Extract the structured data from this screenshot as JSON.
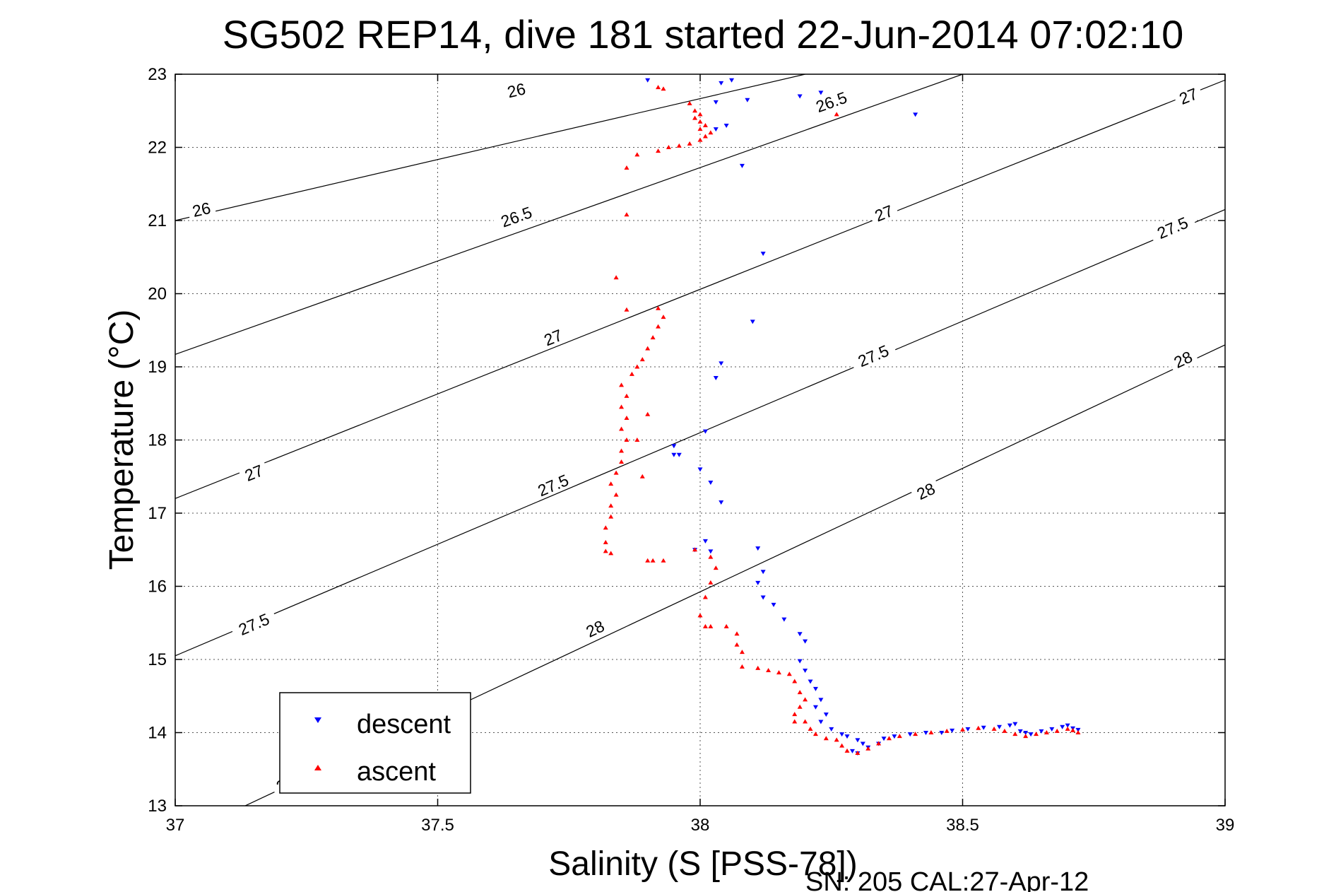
{
  "chart_data": {
    "type": "scatter",
    "title": "SG502 REP14, dive 181 started 22-Jun-2014 07:02:10",
    "xlabel": "Salinity (S [PSS-78])",
    "ylabel": "Temperature (°C)",
    "footer": "SN: 205  CAL:27-Apr-12",
    "xlim": [
      37,
      39
    ],
    "ylim": [
      13,
      23
    ],
    "xticks": [
      "37",
      "37.5",
      "38",
      "38.5",
      "39"
    ],
    "yticks": [
      "13",
      "14",
      "15",
      "16",
      "17",
      "18",
      "19",
      "20",
      "21",
      "22",
      "23"
    ],
    "grid": true,
    "legend_position": "bottom-left",
    "contours": [
      {
        "level": "26",
        "start": [
          37,
          21.0
        ],
        "end": [
          38.2,
          23.0
        ],
        "labels": [
          [
            37.05,
            21.15
          ],
          [
            37.65,
            22.78
          ]
        ]
      },
      {
        "level": "26.5",
        "start": [
          37,
          19.17
        ],
        "end": [
          38.5,
          23.0
        ],
        "labels": [
          [
            37.65,
            21.05
          ],
          [
            38.25,
            22.62
          ]
        ]
      },
      {
        "level": "27",
        "start": [
          37,
          17.2
        ],
        "end": [
          39,
          22.92
        ],
        "labels": [
          [
            37.15,
            17.55
          ],
          [
            37.72,
            19.4
          ],
          [
            38.35,
            21.1
          ],
          [
            38.93,
            22.7
          ]
        ]
      },
      {
        "level": "27.5",
        "start": [
          37,
          15.05
        ],
        "end": [
          39,
          21.15
        ],
        "labels": [
          [
            37.15,
            15.48
          ],
          [
            37.72,
            17.38
          ],
          [
            38.33,
            19.15
          ],
          [
            38.9,
            20.9
          ]
        ]
      },
      {
        "level": "28",
        "start": [
          37,
          12.55
        ],
        "end": [
          39,
          19.3
        ],
        "labels": [
          [
            37.21,
            13.3
          ],
          [
            37.8,
            15.42
          ],
          [
            38.43,
            17.3
          ],
          [
            38.92,
            19.1
          ]
        ]
      }
    ],
    "series": [
      {
        "name": "descent",
        "color": "#0000ff",
        "marker": "triangle-down",
        "points": [
          [
            37.9,
            22.92
          ],
          [
            38.04,
            22.88
          ],
          [
            38.06,
            22.92
          ],
          [
            38.03,
            22.62
          ],
          [
            38.09,
            22.65
          ],
          [
            38.19,
            22.7
          ],
          [
            38.23,
            22.75
          ],
          [
            38.41,
            22.45
          ],
          [
            38.03,
            22.25
          ],
          [
            38.05,
            22.3
          ],
          [
            38.08,
            21.75
          ],
          [
            38.12,
            20.55
          ],
          [
            38.1,
            19.62
          ],
          [
            38.04,
            19.05
          ],
          [
            38.03,
            18.85
          ],
          [
            38.01,
            18.12
          ],
          [
            37.95,
            17.92
          ],
          [
            37.95,
            17.8
          ],
          [
            37.96,
            17.8
          ],
          [
            38.0,
            17.6
          ],
          [
            38.02,
            17.42
          ],
          [
            38.04,
            17.15
          ],
          [
            38.01,
            16.62
          ],
          [
            37.99,
            16.5
          ],
          [
            38.02,
            16.48
          ],
          [
            38.11,
            16.52
          ],
          [
            38.12,
            16.2
          ],
          [
            38.11,
            16.05
          ],
          [
            38.12,
            15.85
          ],
          [
            38.14,
            15.75
          ],
          [
            38.16,
            15.55
          ],
          [
            38.19,
            15.35
          ],
          [
            38.2,
            15.25
          ],
          [
            38.19,
            14.98
          ],
          [
            38.2,
            14.85
          ],
          [
            38.21,
            14.7
          ],
          [
            38.22,
            14.6
          ],
          [
            38.23,
            14.45
          ],
          [
            38.22,
            14.35
          ],
          [
            38.24,
            14.25
          ],
          [
            38.23,
            14.15
          ],
          [
            38.25,
            14.05
          ],
          [
            38.27,
            13.98
          ],
          [
            38.28,
            13.95
          ],
          [
            38.3,
            13.9
          ],
          [
            38.31,
            13.85
          ],
          [
            38.29,
            13.75
          ],
          [
            38.3,
            13.72
          ],
          [
            38.32,
            13.8
          ],
          [
            38.34,
            13.85
          ],
          [
            38.35,
            13.92
          ],
          [
            38.37,
            13.95
          ],
          [
            38.4,
            13.98
          ],
          [
            38.43,
            14.0
          ],
          [
            38.46,
            14.0
          ],
          [
            38.48,
            14.03
          ],
          [
            38.51,
            14.05
          ],
          [
            38.54,
            14.07
          ],
          [
            38.57,
            14.08
          ],
          [
            38.59,
            14.1
          ],
          [
            38.6,
            14.12
          ],
          [
            38.61,
            14.02
          ],
          [
            38.62,
            14.0
          ],
          [
            38.63,
            13.98
          ],
          [
            38.65,
            14.02
          ],
          [
            38.67,
            14.05
          ],
          [
            38.69,
            14.08
          ],
          [
            38.7,
            14.1
          ],
          [
            38.71,
            14.06
          ],
          [
            38.72,
            14.04
          ]
        ]
      },
      {
        "name": "ascent",
        "color": "#ff0000",
        "marker": "triangle-up",
        "points": [
          [
            37.92,
            22.82
          ],
          [
            37.93,
            22.8
          ],
          [
            37.98,
            22.6
          ],
          [
            37.99,
            22.5
          ],
          [
            38.0,
            22.45
          ],
          [
            37.99,
            22.4
          ],
          [
            38.0,
            22.35
          ],
          [
            38.01,
            22.3
          ],
          [
            38.0,
            22.25
          ],
          [
            38.02,
            22.2
          ],
          [
            38.01,
            22.15
          ],
          [
            38.0,
            22.1
          ],
          [
            37.98,
            22.05
          ],
          [
            37.96,
            22.02
          ],
          [
            37.94,
            22.0
          ],
          [
            37.92,
            21.95
          ],
          [
            37.88,
            21.9
          ],
          [
            37.86,
            21.72
          ],
          [
            38.26,
            22.45
          ],
          [
            37.86,
            21.08
          ],
          [
            37.84,
            20.22
          ],
          [
            37.86,
            19.78
          ],
          [
            37.92,
            19.8
          ],
          [
            37.93,
            19.68
          ],
          [
            37.92,
            19.55
          ],
          [
            37.91,
            19.4
          ],
          [
            37.9,
            19.25
          ],
          [
            37.89,
            19.1
          ],
          [
            37.88,
            19.0
          ],
          [
            37.87,
            18.9
          ],
          [
            37.85,
            18.75
          ],
          [
            37.86,
            18.6
          ],
          [
            37.85,
            18.45
          ],
          [
            37.86,
            18.3
          ],
          [
            37.85,
            18.15
          ],
          [
            37.86,
            18.0
          ],
          [
            37.85,
            17.85
          ],
          [
            37.85,
            17.7
          ],
          [
            37.84,
            17.55
          ],
          [
            37.83,
            17.4
          ],
          [
            37.84,
            17.25
          ],
          [
            37.83,
            17.1
          ],
          [
            37.83,
            16.95
          ],
          [
            37.82,
            16.8
          ],
          [
            37.82,
            16.6
          ],
          [
            37.82,
            16.48
          ],
          [
            37.83,
            16.45
          ],
          [
            37.9,
            18.35
          ],
          [
            37.88,
            18.0
          ],
          [
            37.89,
            17.5
          ],
          [
            37.9,
            16.35
          ],
          [
            37.91,
            16.35
          ],
          [
            37.93,
            16.35
          ],
          [
            37.99,
            16.5
          ],
          [
            38.02,
            16.4
          ],
          [
            38.03,
            16.25
          ],
          [
            38.02,
            16.05
          ],
          [
            38.01,
            15.85
          ],
          [
            38.0,
            15.6
          ],
          [
            38.01,
            15.45
          ],
          [
            38.02,
            15.45
          ],
          [
            38.05,
            15.45
          ],
          [
            38.07,
            15.35
          ],
          [
            38.07,
            15.2
          ],
          [
            38.08,
            15.1
          ],
          [
            38.08,
            14.9
          ],
          [
            38.11,
            14.88
          ],
          [
            38.13,
            14.85
          ],
          [
            38.15,
            14.82
          ],
          [
            38.17,
            14.8
          ],
          [
            38.18,
            14.7
          ],
          [
            38.19,
            14.55
          ],
          [
            38.2,
            14.45
          ],
          [
            38.19,
            14.35
          ],
          [
            38.18,
            14.25
          ],
          [
            38.18,
            14.15
          ],
          [
            38.2,
            14.15
          ],
          [
            38.21,
            14.05
          ],
          [
            38.22,
            13.98
          ],
          [
            38.24,
            13.92
          ],
          [
            38.26,
            13.9
          ],
          [
            38.27,
            13.82
          ],
          [
            38.28,
            13.75
          ],
          [
            38.3,
            13.72
          ],
          [
            38.32,
            13.78
          ],
          [
            38.34,
            13.85
          ],
          [
            38.36,
            13.92
          ],
          [
            38.38,
            13.95
          ],
          [
            38.41,
            13.98
          ],
          [
            38.44,
            14.0
          ],
          [
            38.47,
            14.02
          ],
          [
            38.5,
            14.04
          ],
          [
            38.53,
            14.06
          ],
          [
            38.56,
            14.05
          ],
          [
            38.58,
            14.02
          ],
          [
            38.6,
            13.98
          ],
          [
            38.62,
            13.95
          ],
          [
            38.64,
            13.98
          ],
          [
            38.66,
            14.0
          ],
          [
            38.68,
            14.02
          ],
          [
            38.7,
            14.05
          ],
          [
            38.72,
            14.0
          ],
          [
            38.71,
            14.03
          ]
        ]
      }
    ]
  }
}
